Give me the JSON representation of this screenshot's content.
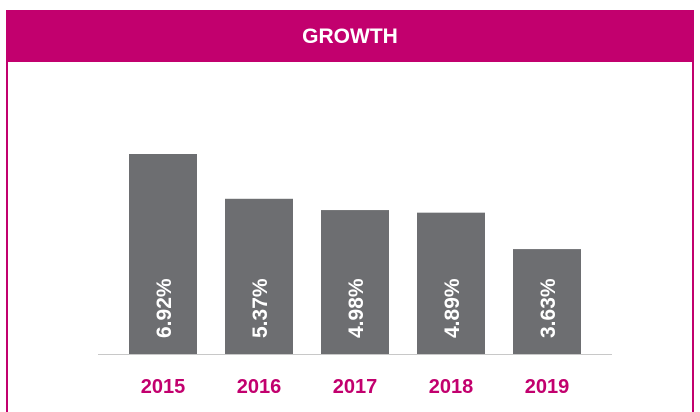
{
  "chart_data": {
    "type": "bar",
    "title": "GROWTH",
    "categories": [
      "2015",
      "2016",
      "2017",
      "2018",
      "2019"
    ],
    "values": [
      6.92,
      5.37,
      4.98,
      4.89,
      3.63
    ],
    "value_labels": [
      "6.92%",
      "5.37%",
      "4.98%",
      "4.89%",
      "3.63%"
    ],
    "color": "#6d6e71"
  }
}
